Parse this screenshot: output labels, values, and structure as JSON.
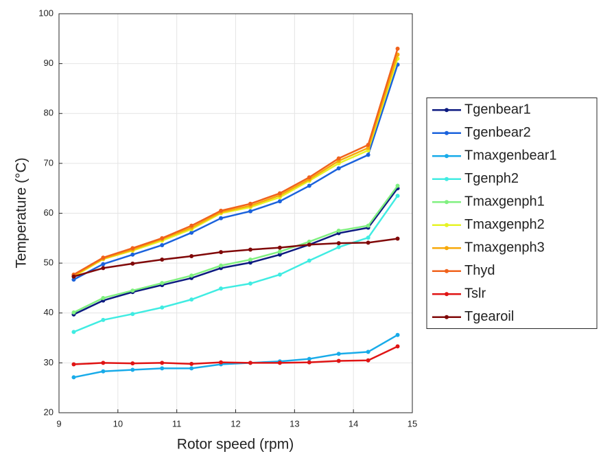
{
  "chart_data": {
    "type": "line",
    "x_label": "Rotor speed (rpm)",
    "y_label": "Temperature (°C)",
    "x": [
      9.25,
      9.75,
      10.25,
      10.75,
      11.25,
      11.75,
      12.25,
      12.75,
      13.25,
      13.75,
      14.25,
      14.75
    ],
    "xlim": [
      9,
      15
    ],
    "xticks": [
      9,
      10,
      11,
      12,
      13,
      14,
      15
    ],
    "ylim": [
      20,
      100
    ],
    "yticks": [
      20,
      30,
      40,
      50,
      60,
      70,
      80,
      90,
      100
    ],
    "grid": true,
    "legend": "right",
    "series": [
      {
        "name": "Tgenbear1",
        "color": "#0c1a80",
        "values": [
          39.7,
          42.5,
          44.2,
          45.6,
          47.0,
          49.0,
          50.1,
          51.7,
          53.7,
          56.0,
          57.1,
          65.0
        ]
      },
      {
        "name": "Tgenbear2",
        "color": "#1a62dc",
        "values": [
          46.7,
          49.8,
          51.7,
          53.6,
          56.1,
          59.0,
          60.4,
          62.4,
          65.5,
          69.0,
          71.7,
          89.8
        ]
      },
      {
        "name": "Tmaxgenbear1",
        "color": "#18abe9",
        "values": [
          27.1,
          28.3,
          28.6,
          28.9,
          28.9,
          29.7,
          30.0,
          30.3,
          30.8,
          31.8,
          32.2,
          35.6
        ]
      },
      {
        "name": "Tgenph2",
        "color": "#40ece2",
        "values": [
          36.2,
          38.6,
          39.8,
          41.1,
          42.7,
          44.9,
          45.9,
          47.7,
          50.5,
          53.2,
          55.1,
          63.5
        ]
      },
      {
        "name": "Tmaxgenph1",
        "color": "#80f080",
        "values": [
          40.1,
          43.0,
          44.5,
          46.0,
          47.5,
          49.5,
          50.7,
          52.3,
          54.3,
          56.5,
          57.5,
          65.5
        ]
      },
      {
        "name": "Tmaxgenph2",
        "color": "#e6f324",
        "values": [
          47.3,
          50.8,
          52.5,
          54.5,
          56.8,
          60.0,
          61.2,
          63.2,
          66.5,
          70.0,
          72.6,
          91.0
        ]
      },
      {
        "name": "Tmaxgenph3",
        "color": "#f7a90a",
        "values": [
          47.5,
          50.9,
          52.7,
          54.8,
          57.1,
          60.2,
          61.5,
          63.6,
          66.8,
          70.5,
          73.1,
          91.8
        ]
      },
      {
        "name": "Thyd",
        "color": "#f0621c",
        "values": [
          47.7,
          51.1,
          53.0,
          55.0,
          57.5,
          60.5,
          61.9,
          64.0,
          67.2,
          71.0,
          73.7,
          93.0
        ]
      },
      {
        "name": "Tslr",
        "color": "#e01414",
        "values": [
          29.7,
          30.0,
          29.9,
          30.0,
          29.8,
          30.1,
          30.0,
          30.0,
          30.1,
          30.4,
          30.5,
          33.3
        ]
      },
      {
        "name": "Tgearoil",
        "color": "#800808",
        "values": [
          47.3,
          49.0,
          49.9,
          50.7,
          51.4,
          52.2,
          52.7,
          53.1,
          53.7,
          54.0,
          54.1,
          54.9
        ]
      }
    ]
  }
}
